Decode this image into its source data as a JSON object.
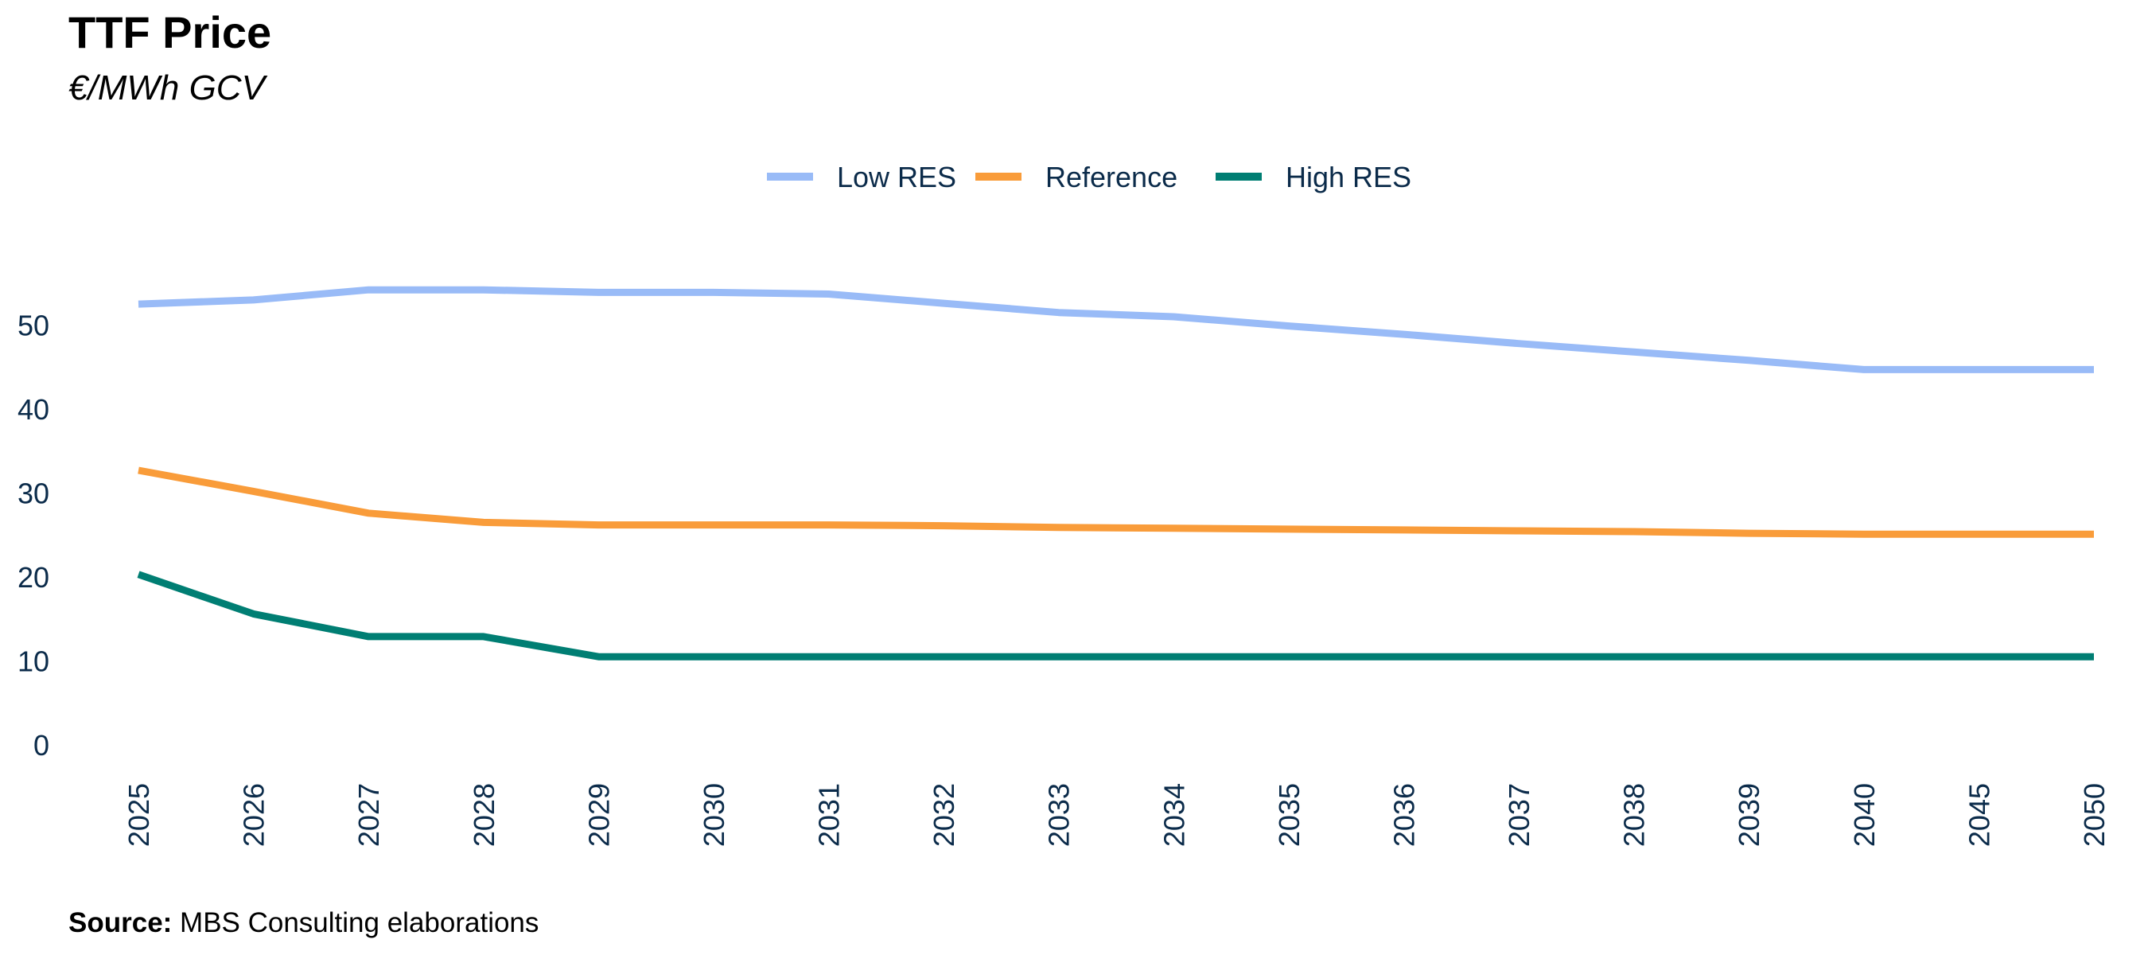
{
  "chart_data": {
    "type": "line",
    "title": "TTF Price",
    "subtitle": "€/MWh GCV",
    "source_label": "Source:",
    "source_text": " MBS Consulting elaborations",
    "categories": [
      "2025",
      "2026",
      "2027",
      "2028",
      "2029",
      "2030",
      "2031",
      "2032",
      "2033",
      "2034",
      "2035",
      "2036",
      "2037",
      "2038",
      "2039",
      "2040",
      "2045",
      "2050"
    ],
    "ylim": [
      0,
      60
    ],
    "yticks": [
      0,
      10,
      20,
      30,
      40,
      50
    ],
    "grid": false,
    "legend": "top-center",
    "series": [
      {
        "name": "Low RES",
        "color": "#99bbf7",
        "values": [
          52.5,
          53.0,
          54.2,
          54.2,
          53.9,
          53.9,
          53.7,
          52.6,
          51.5,
          51.0,
          49.9,
          48.9,
          47.8,
          46.8,
          45.8,
          44.7,
          44.7,
          44.7
        ]
      },
      {
        "name": "Reference",
        "color": "#f99c3a",
        "values": [
          32.7,
          30.2,
          27.6,
          26.5,
          26.2,
          26.2,
          26.2,
          26.1,
          25.9,
          25.8,
          25.7,
          25.6,
          25.5,
          25.4,
          25.2,
          25.1,
          25.1,
          25.1
        ]
      },
      {
        "name": "High RES",
        "color": "#007e73",
        "values": [
          20.3,
          15.6,
          12.9,
          12.9,
          10.5,
          10.5,
          10.5,
          10.5,
          10.5,
          10.5,
          10.5,
          10.5,
          10.5,
          10.5,
          10.5,
          10.5,
          10.5,
          10.5
        ]
      }
    ]
  }
}
